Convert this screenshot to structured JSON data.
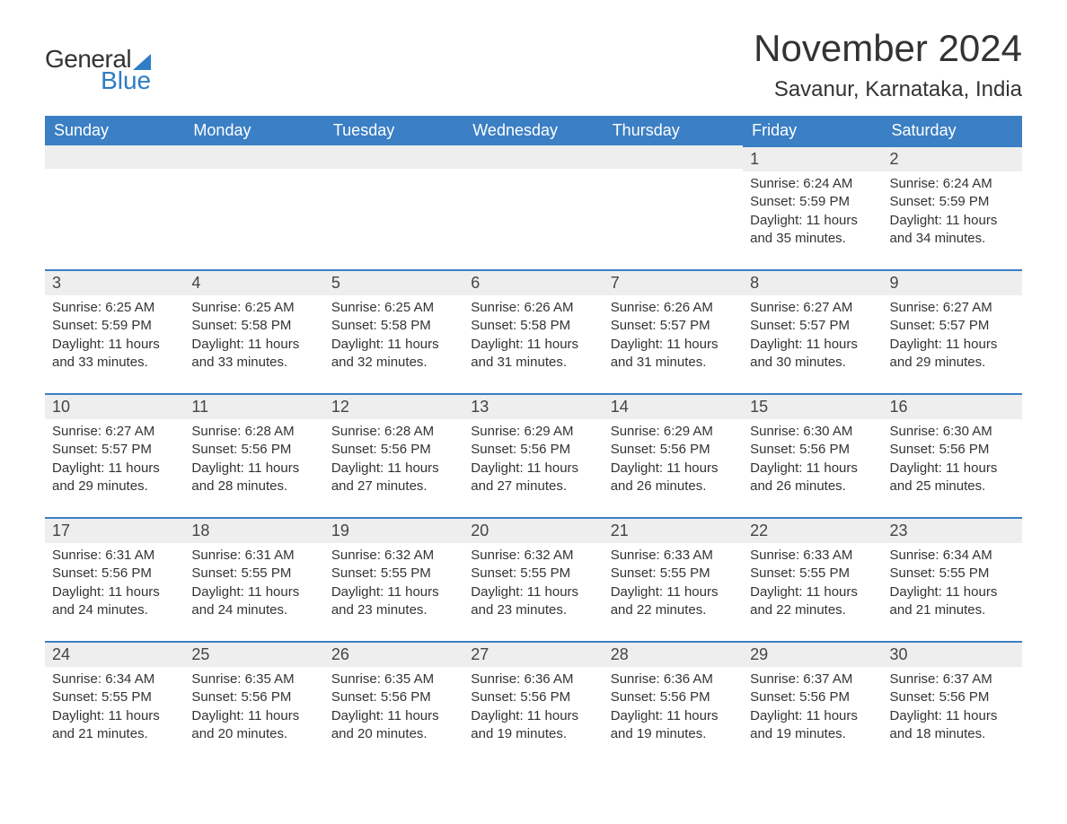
{
  "logo": {
    "text_general": "General",
    "text_blue": "Blue",
    "triangle_color": "#2f7dc4"
  },
  "title": "November 2024",
  "location": "Savanur, Karnataka, India",
  "colors": {
    "header_bg": "#3b7fc4",
    "header_text": "#ffffff",
    "daynum_bg": "#eeeeee",
    "border": "#3b7fc4",
    "text": "#333333",
    "background": "#ffffff"
  },
  "weekdays": [
    "Sunday",
    "Monday",
    "Tuesday",
    "Wednesday",
    "Thursday",
    "Friday",
    "Saturday"
  ],
  "weeks": [
    [
      null,
      null,
      null,
      null,
      null,
      {
        "day": "1",
        "sunrise": "Sunrise: 6:24 AM",
        "sunset": "Sunset: 5:59 PM",
        "daylight": "Daylight: 11 hours and 35 minutes."
      },
      {
        "day": "2",
        "sunrise": "Sunrise: 6:24 AM",
        "sunset": "Sunset: 5:59 PM",
        "daylight": "Daylight: 11 hours and 34 minutes."
      }
    ],
    [
      {
        "day": "3",
        "sunrise": "Sunrise: 6:25 AM",
        "sunset": "Sunset: 5:59 PM",
        "daylight": "Daylight: 11 hours and 33 minutes."
      },
      {
        "day": "4",
        "sunrise": "Sunrise: 6:25 AM",
        "sunset": "Sunset: 5:58 PM",
        "daylight": "Daylight: 11 hours and 33 minutes."
      },
      {
        "day": "5",
        "sunrise": "Sunrise: 6:25 AM",
        "sunset": "Sunset: 5:58 PM",
        "daylight": "Daylight: 11 hours and 32 minutes."
      },
      {
        "day": "6",
        "sunrise": "Sunrise: 6:26 AM",
        "sunset": "Sunset: 5:58 PM",
        "daylight": "Daylight: 11 hours and 31 minutes."
      },
      {
        "day": "7",
        "sunrise": "Sunrise: 6:26 AM",
        "sunset": "Sunset: 5:57 PM",
        "daylight": "Daylight: 11 hours and 31 minutes."
      },
      {
        "day": "8",
        "sunrise": "Sunrise: 6:27 AM",
        "sunset": "Sunset: 5:57 PM",
        "daylight": "Daylight: 11 hours and 30 minutes."
      },
      {
        "day": "9",
        "sunrise": "Sunrise: 6:27 AM",
        "sunset": "Sunset: 5:57 PM",
        "daylight": "Daylight: 11 hours and 29 minutes."
      }
    ],
    [
      {
        "day": "10",
        "sunrise": "Sunrise: 6:27 AM",
        "sunset": "Sunset: 5:57 PM",
        "daylight": "Daylight: 11 hours and 29 minutes."
      },
      {
        "day": "11",
        "sunrise": "Sunrise: 6:28 AM",
        "sunset": "Sunset: 5:56 PM",
        "daylight": "Daylight: 11 hours and 28 minutes."
      },
      {
        "day": "12",
        "sunrise": "Sunrise: 6:28 AM",
        "sunset": "Sunset: 5:56 PM",
        "daylight": "Daylight: 11 hours and 27 minutes."
      },
      {
        "day": "13",
        "sunrise": "Sunrise: 6:29 AM",
        "sunset": "Sunset: 5:56 PM",
        "daylight": "Daylight: 11 hours and 27 minutes."
      },
      {
        "day": "14",
        "sunrise": "Sunrise: 6:29 AM",
        "sunset": "Sunset: 5:56 PM",
        "daylight": "Daylight: 11 hours and 26 minutes."
      },
      {
        "day": "15",
        "sunrise": "Sunrise: 6:30 AM",
        "sunset": "Sunset: 5:56 PM",
        "daylight": "Daylight: 11 hours and 26 minutes."
      },
      {
        "day": "16",
        "sunrise": "Sunrise: 6:30 AM",
        "sunset": "Sunset: 5:56 PM",
        "daylight": "Daylight: 11 hours and 25 minutes."
      }
    ],
    [
      {
        "day": "17",
        "sunrise": "Sunrise: 6:31 AM",
        "sunset": "Sunset: 5:56 PM",
        "daylight": "Daylight: 11 hours and 24 minutes."
      },
      {
        "day": "18",
        "sunrise": "Sunrise: 6:31 AM",
        "sunset": "Sunset: 5:55 PM",
        "daylight": "Daylight: 11 hours and 24 minutes."
      },
      {
        "day": "19",
        "sunrise": "Sunrise: 6:32 AM",
        "sunset": "Sunset: 5:55 PM",
        "daylight": "Daylight: 11 hours and 23 minutes."
      },
      {
        "day": "20",
        "sunrise": "Sunrise: 6:32 AM",
        "sunset": "Sunset: 5:55 PM",
        "daylight": "Daylight: 11 hours and 23 minutes."
      },
      {
        "day": "21",
        "sunrise": "Sunrise: 6:33 AM",
        "sunset": "Sunset: 5:55 PM",
        "daylight": "Daylight: 11 hours and 22 minutes."
      },
      {
        "day": "22",
        "sunrise": "Sunrise: 6:33 AM",
        "sunset": "Sunset: 5:55 PM",
        "daylight": "Daylight: 11 hours and 22 minutes."
      },
      {
        "day": "23",
        "sunrise": "Sunrise: 6:34 AM",
        "sunset": "Sunset: 5:55 PM",
        "daylight": "Daylight: 11 hours and 21 minutes."
      }
    ],
    [
      {
        "day": "24",
        "sunrise": "Sunrise: 6:34 AM",
        "sunset": "Sunset: 5:55 PM",
        "daylight": "Daylight: 11 hours and 21 minutes."
      },
      {
        "day": "25",
        "sunrise": "Sunrise: 6:35 AM",
        "sunset": "Sunset: 5:56 PM",
        "daylight": "Daylight: 11 hours and 20 minutes."
      },
      {
        "day": "26",
        "sunrise": "Sunrise: 6:35 AM",
        "sunset": "Sunset: 5:56 PM",
        "daylight": "Daylight: 11 hours and 20 minutes."
      },
      {
        "day": "27",
        "sunrise": "Sunrise: 6:36 AM",
        "sunset": "Sunset: 5:56 PM",
        "daylight": "Daylight: 11 hours and 19 minutes."
      },
      {
        "day": "28",
        "sunrise": "Sunrise: 6:36 AM",
        "sunset": "Sunset: 5:56 PM",
        "daylight": "Daylight: 11 hours and 19 minutes."
      },
      {
        "day": "29",
        "sunrise": "Sunrise: 6:37 AM",
        "sunset": "Sunset: 5:56 PM",
        "daylight": "Daylight: 11 hours and 19 minutes."
      },
      {
        "day": "30",
        "sunrise": "Sunrise: 6:37 AM",
        "sunset": "Sunset: 5:56 PM",
        "daylight": "Daylight: 11 hours and 18 minutes."
      }
    ]
  ]
}
